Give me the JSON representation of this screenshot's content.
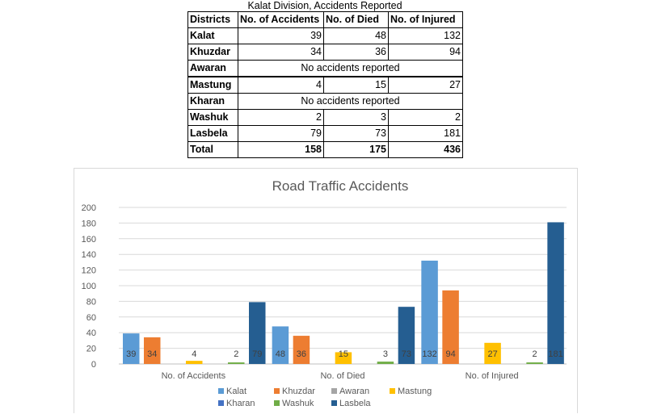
{
  "table": {
    "caption": "Kalat Division, Accidents Reported",
    "headers": [
      "Districts",
      "No. of Accidents",
      "No. of Died",
      "No. of Injured"
    ],
    "rows": [
      {
        "district": "Kalat",
        "accidents": "39",
        "died": "48",
        "injured": "132"
      },
      {
        "district": "Khuzdar",
        "accidents": "34",
        "died": "36",
        "injured": "94"
      },
      {
        "district": "Awaran",
        "note": "No accidents reported"
      },
      {
        "district": "Mastung",
        "accidents": "4",
        "died": "15",
        "injured": "27"
      },
      {
        "district": "Kharan",
        "note": "No accidents reported"
      },
      {
        "district": "Washuk",
        "accidents": "2",
        "died": "3",
        "injured": "2"
      },
      {
        "district": "Lasbela",
        "accidents": "79",
        "died": "73",
        "injured": "181"
      },
      {
        "district": "Total",
        "accidents": "158",
        "died": "175",
        "injured": "436"
      }
    ]
  },
  "chart_data": {
    "type": "bar",
    "title": "Road Traffic Accidents",
    "categories": [
      "No. of Accidents",
      "No. of Died",
      "No. of Injured"
    ],
    "ylim": [
      0,
      200
    ],
    "yticks": [
      0,
      20,
      40,
      60,
      80,
      100,
      120,
      140,
      160,
      180,
      200
    ],
    "grid": true,
    "legend_position": "bottom",
    "series": [
      {
        "name": "Kalat",
        "color": "#5b9bd5",
        "values": [
          39,
          48,
          132
        ]
      },
      {
        "name": "Khuzdar",
        "color": "#ed7d31",
        "values": [
          34,
          36,
          94
        ]
      },
      {
        "name": "Awaran",
        "color": "#a5a5a5",
        "values": [
          null,
          null,
          null
        ]
      },
      {
        "name": "Mastung",
        "color": "#ffc000",
        "values": [
          4,
          15,
          27
        ]
      },
      {
        "name": "Kharan",
        "color": "#4472c4",
        "values": [
          null,
          null,
          null
        ]
      },
      {
        "name": "Washuk",
        "color": "#70ad47",
        "values": [
          2,
          3,
          2
        ]
      },
      {
        "name": "Lasbela",
        "color": "#255e91",
        "values": [
          79,
          73,
          181
        ]
      }
    ]
  }
}
